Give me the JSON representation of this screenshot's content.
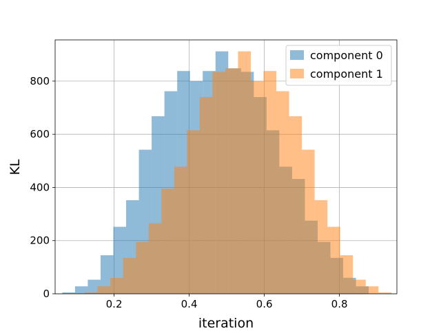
{
  "chart_data": {
    "type": "bar",
    "subtype": "overlapping-histogram",
    "title": "",
    "xlabel": "iteration",
    "ylabel": "KL",
    "xlim": [
      0.043,
      0.953
    ],
    "ylim": [
      0,
      955
    ],
    "xticks": [
      0.2,
      0.4,
      0.6,
      0.8
    ],
    "xtick_labels": [
      "0.2",
      "0.4",
      "0.6",
      "0.8"
    ],
    "yticks": [
      0,
      200,
      400,
      600,
      800
    ],
    "ytick_labels": [
      "0",
      "200",
      "400",
      "600",
      "800"
    ],
    "grid": true,
    "legend_position": "top-right",
    "series": [
      {
        "name": "component 0",
        "color": "#1f77b4",
        "opacity": 0.5,
        "bin_edges": [
          0.062,
          0.096,
          0.13,
          0.164,
          0.198,
          0.232,
          0.266,
          0.3,
          0.334,
          0.368,
          0.402,
          0.436,
          0.47,
          0.504,
          0.538,
          0.572,
          0.606,
          0.64,
          0.674,
          0.708,
          0.742,
          0.776,
          0.81,
          0.844,
          0.878
        ],
        "values": [
          5,
          28,
          53,
          145,
          252,
          352,
          542,
          668,
          762,
          838,
          800,
          838,
          912,
          848,
          835,
          740,
          615,
          478,
          432,
          275,
          195,
          135,
          60,
          28
        ]
      },
      {
        "name": "component 1",
        "color": "#ff7f0e",
        "opacity": 0.5,
        "bin_edges": [
          0.122,
          0.156,
          0.19,
          0.224,
          0.258,
          0.292,
          0.326,
          0.36,
          0.394,
          0.428,
          0.462,
          0.496,
          0.53,
          0.564,
          0.598,
          0.632,
          0.666,
          0.7,
          0.734,
          0.768,
          0.802,
          0.836,
          0.87,
          0.904,
          0.938
        ],
        "values": [
          5,
          28,
          60,
          135,
          195,
          265,
          395,
          478,
          615,
          740,
          835,
          848,
          912,
          800,
          838,
          762,
          668,
          542,
          352,
          252,
          145,
          53,
          28,
          5
        ]
      }
    ]
  }
}
